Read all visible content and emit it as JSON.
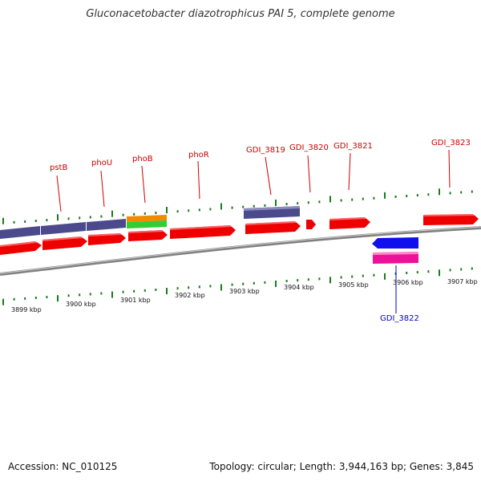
{
  "title": "Gluconacetobacter diazotrophicus PAI 5, complete genome",
  "footer": {
    "accession": "Accession: NC_010125",
    "summary": "Topology: circular; Length: 3,944,163 bp; Genes: 3,845"
  },
  "colors": {
    "background": "#ffffff",
    "backbone": "#808080",
    "tick": "#1a7a1a",
    "cds": "#ee0000",
    "gene_block": "#4b4a8c",
    "forward_label": "#cc0000",
    "reverse_label": "#0000cc",
    "alt1": "#f08a00",
    "alt2": "#33cc33",
    "blue": "#1010ee",
    "magenta": "#ee1199"
  },
  "axis": {
    "upper_labels": [
      "3899 kbp",
      "3900 kbp",
      "3901 kbp",
      "3902 kbp",
      "3903 kbp",
      "3904 kbp",
      "3905 kbp",
      "3906 kbp",
      "3907 kbp"
    ]
  },
  "gene_labels": {
    "pstB": "pstB",
    "phoU": "phoU",
    "phoB": "phoB",
    "phoR": "phoR",
    "GDI_3819": "GDI_3819",
    "GDI_3820": "GDI_3820",
    "GDI_3821": "GDI_3821",
    "GDI_3822": "GDI_3822",
    "GDI_3823": "GDI_3823"
  }
}
